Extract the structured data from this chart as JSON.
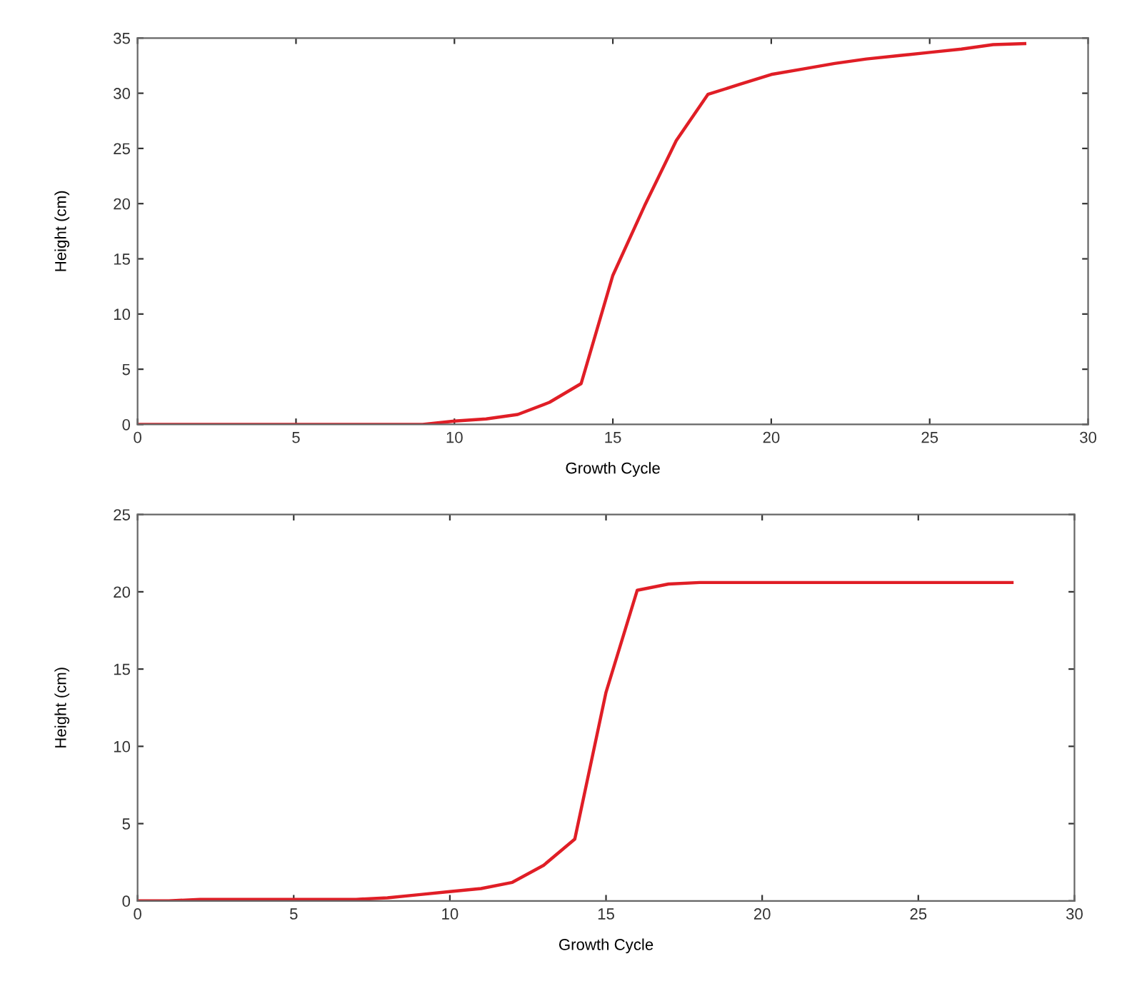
{
  "chart_data": [
    {
      "type": "line",
      "xlabel": "Growth Cycle",
      "ylabel": "Height (cm)",
      "xlim": [
        0,
        30
      ],
      "ylim": [
        0,
        35
      ],
      "xticks": [
        0,
        5,
        10,
        15,
        20,
        25,
        30
      ],
      "yticks": [
        0,
        5,
        10,
        15,
        20,
        25,
        30,
        35
      ],
      "x": [
        0,
        1,
        2,
        3,
        4,
        5,
        6,
        7,
        8,
        9,
        10,
        11,
        12,
        13,
        14,
        15,
        16,
        17,
        18,
        19,
        20,
        21,
        22,
        23,
        24,
        25,
        26,
        27,
        28
      ],
      "series": [
        {
          "color": "#e01e26",
          "values": [
            0,
            0,
            0,
            0,
            0,
            0,
            0,
            0,
            0,
            0,
            0.3,
            0.5,
            0.9,
            2.0,
            3.7,
            13.5,
            19.8,
            25.7,
            29.9,
            30.8,
            31.7,
            32.2,
            32.7,
            33.1,
            33.4,
            33.7,
            34.0,
            34.4,
            34.5
          ]
        }
      ]
    },
    {
      "type": "line",
      "xlabel": "Growth Cycle",
      "ylabel": "Height (cm)",
      "xlim": [
        0,
        30
      ],
      "ylim": [
        0,
        25
      ],
      "xticks": [
        0,
        5,
        10,
        15,
        20,
        25,
        30
      ],
      "yticks": [
        0,
        5,
        10,
        15,
        20,
        25
      ],
      "x": [
        0,
        1,
        2,
        3,
        4,
        5,
        6,
        7,
        8,
        9,
        10,
        11,
        12,
        13,
        14,
        15,
        16,
        17,
        18,
        19,
        20,
        21,
        22,
        23,
        24,
        25,
        26,
        27,
        28
      ],
      "series": [
        {
          "color": "#e01e26",
          "values": [
            0,
            0,
            0.1,
            0.1,
            0.1,
            0.1,
            0.1,
            0.1,
            0.2,
            0.4,
            0.6,
            0.8,
            1.2,
            2.3,
            4.0,
            13.5,
            20.1,
            20.5,
            20.6,
            20.6,
            20.6,
            20.6,
            20.6,
            20.6,
            20.6,
            20.6,
            20.6,
            20.6,
            20.6
          ]
        }
      ]
    }
  ]
}
